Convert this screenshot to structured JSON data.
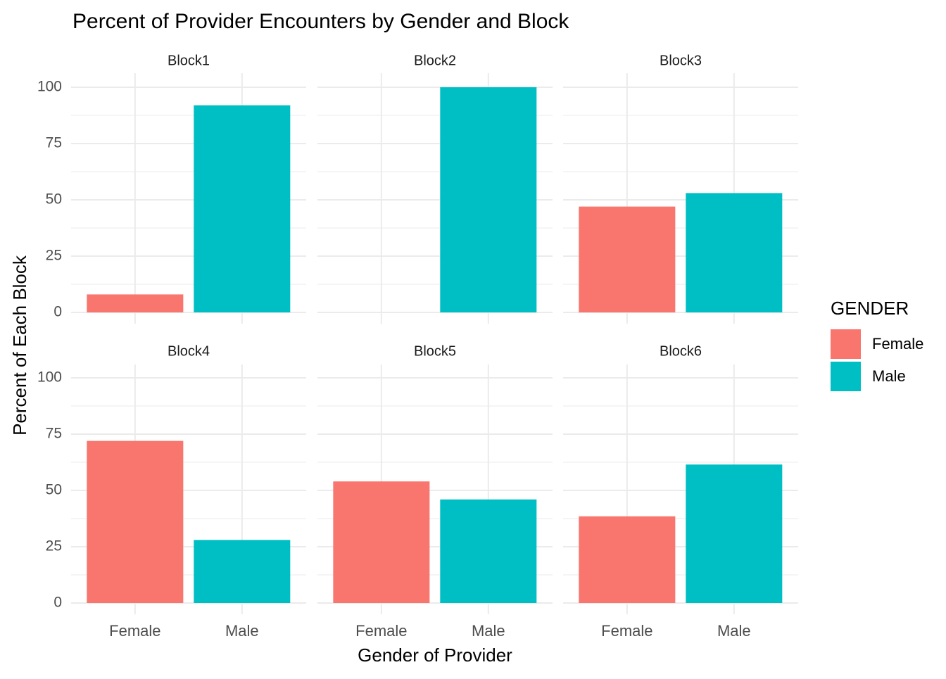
{
  "chart_data": {
    "type": "bar",
    "title": "Percent of Provider Encounters by Gender and Block",
    "xlabel": "Gender of Provider",
    "ylabel": "Percent of Each Block",
    "categories": [
      "Female",
      "Male"
    ],
    "ylim": [
      0,
      104
    ],
    "yticks": [
      0,
      25,
      50,
      75,
      100
    ],
    "grid": true,
    "legend": {
      "title": "GENDER",
      "placement": "right",
      "items": [
        {
          "name": "Female",
          "color": "#F8766D"
        },
        {
          "name": "Male",
          "color": "#00BFC4"
        }
      ]
    },
    "panels": [
      {
        "name": "Block1",
        "values": [
          8,
          92
        ]
      },
      {
        "name": "Block2",
        "values": [
          0,
          100
        ]
      },
      {
        "name": "Block3",
        "values": [
          47,
          53
        ]
      },
      {
        "name": "Block4",
        "values": [
          72,
          28
        ]
      },
      {
        "name": "Block5",
        "values": [
          54,
          46
        ]
      },
      {
        "name": "Block6",
        "values": [
          38.5,
          61.5
        ]
      }
    ]
  }
}
